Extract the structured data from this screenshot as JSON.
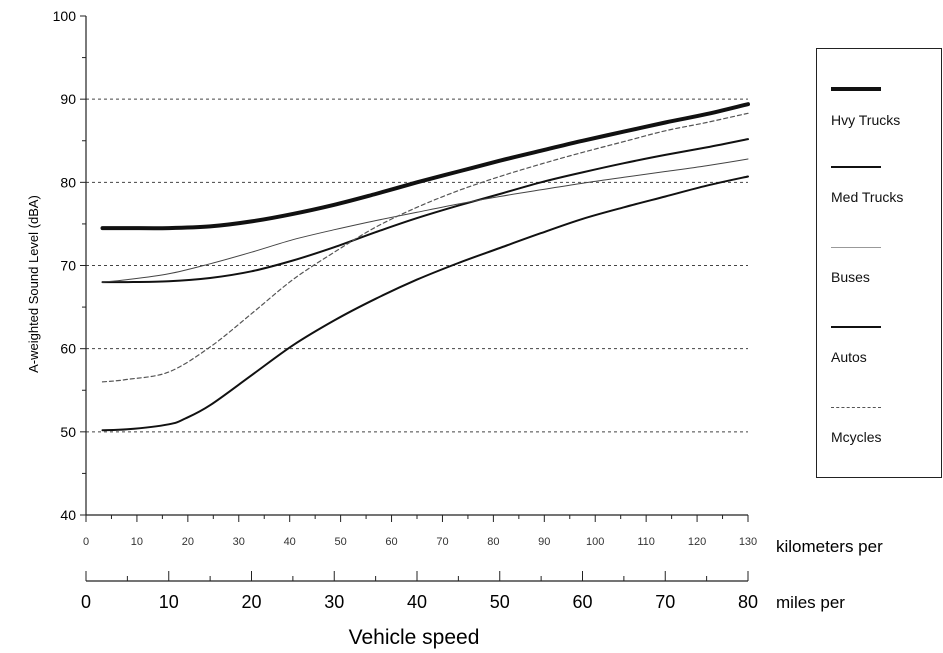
{
  "chart_data": {
    "type": "line",
    "ylabel": "A-weighted Sound Level (dBA)",
    "xlabel": "Vehicle speed",
    "ylim": [
      40,
      100
    ],
    "yticks": [
      "40",
      "50",
      "60",
      "70",
      "80",
      "90",
      "100"
    ],
    "kmh_axis": {
      "label": "kilometers per",
      "range": [
        0,
        130
      ],
      "ticks": [
        "0",
        "10",
        "20",
        "30",
        "40",
        "50",
        "60",
        "70",
        "80",
        "90",
        "100",
        "110",
        "120",
        "130"
      ]
    },
    "mph_axis": {
      "label": "miles per",
      "range": [
        0,
        80
      ],
      "ticks": [
        "0",
        "10",
        "20",
        "30",
        "40",
        "50",
        "60",
        "70",
        "80"
      ]
    },
    "grid": "dotted horizontal at 50, 60, 70, 80, 90",
    "legend_position": "right",
    "series": [
      {
        "name": "Hvy Trucks",
        "style": "thick",
        "color": "#111111",
        "x_mph": [
          2,
          5,
          10,
          15,
          20,
          25,
          30,
          35,
          40,
          45,
          50,
          55,
          60,
          65,
          70,
          75,
          80
        ],
        "y": [
          74.5,
          74.5,
          74.5,
          74.7,
          75.3,
          76.2,
          77.3,
          78.6,
          80.0,
          81.3,
          82.6,
          83.8,
          85.0,
          86.1,
          87.2,
          88.2,
          89.4
        ]
      },
      {
        "name": "Med Trucks",
        "style": "medium",
        "color": "#111111",
        "x_mph": [
          2,
          5,
          10,
          15,
          20,
          25,
          30,
          35,
          40,
          45,
          50,
          55,
          60,
          65,
          70,
          75,
          80
        ],
        "y": [
          68.0,
          68.0,
          68.1,
          68.5,
          69.3,
          70.6,
          72.2,
          74.0,
          75.7,
          77.2,
          78.6,
          80.0,
          81.2,
          82.3,
          83.3,
          84.2,
          85.2
        ]
      },
      {
        "name": "Buses",
        "style": "thin",
        "color": "#444444",
        "x_mph": [
          2,
          5,
          10,
          15,
          20,
          25,
          30,
          35,
          40,
          45,
          50,
          55,
          60,
          65,
          70,
          75,
          80
        ],
        "y": [
          68.0,
          68.3,
          69.0,
          70.2,
          71.6,
          73.1,
          74.3,
          75.4,
          76.4,
          77.4,
          78.3,
          79.1,
          79.9,
          80.6,
          81.3,
          82.0,
          82.8
        ]
      },
      {
        "name": "Autos",
        "style": "medium",
        "color": "#111111",
        "x_mph": [
          2,
          5,
          10,
          12,
          15,
          20,
          25,
          30,
          35,
          40,
          45,
          50,
          55,
          60,
          65,
          70,
          75,
          80
        ],
        "y": [
          50.2,
          50.3,
          50.9,
          51.6,
          53.2,
          56.8,
          60.4,
          63.4,
          66.0,
          68.3,
          70.3,
          72.1,
          73.9,
          75.6,
          77.0,
          78.3,
          79.6,
          80.7
        ]
      },
      {
        "name": "Mcycles",
        "style": "dashed",
        "color": "#555555",
        "x_mph": [
          2,
          5,
          10,
          15,
          20,
          25,
          30,
          35,
          40,
          45,
          50,
          55,
          60,
          65,
          70,
          75,
          80
        ],
        "y": [
          56.0,
          56.3,
          57.2,
          60.2,
          64.2,
          68.3,
          71.6,
          74.6,
          77.0,
          79.0,
          80.7,
          82.2,
          83.6,
          84.9,
          86.2,
          87.2,
          88.3
        ]
      }
    ]
  }
}
